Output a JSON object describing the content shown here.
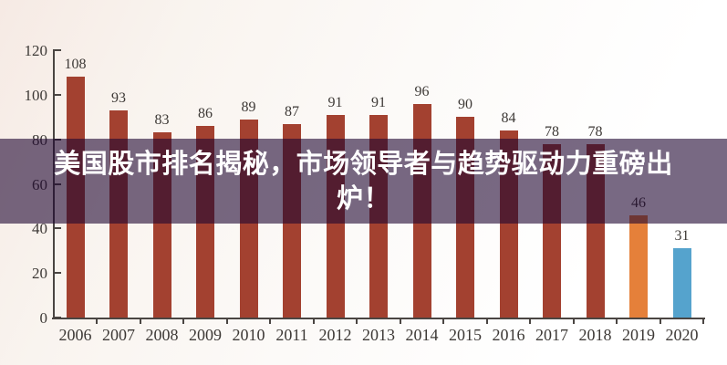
{
  "overlay": {
    "title_line1": "美国股市排名揭秘，市场领导者与趋势驱动力重磅出",
    "title_line2": "炉！",
    "band_color": "rgba(30,5,48,0.60)",
    "text_color": "#ffffff"
  },
  "chart_data": {
    "type": "bar",
    "categories": [
      "2006",
      "2007",
      "2008",
      "2009",
      "2010",
      "2011",
      "2012",
      "2013",
      "2014",
      "2015",
      "2016",
      "2017",
      "2018",
      "2019",
      "2020"
    ],
    "values": [
      108,
      93,
      83,
      86,
      89,
      87,
      91,
      91,
      96,
      90,
      84,
      78,
      78,
      46,
      31
    ],
    "bar_colors": [
      "#a34130",
      "#a34130",
      "#a34130",
      "#a34130",
      "#a34130",
      "#a34130",
      "#a34130",
      "#a34130",
      "#a34130",
      "#a34130",
      "#a34130",
      "#a34130",
      "#a34130",
      "#e5803a",
      "#55a3cd"
    ],
    "default_bar_color": "#a34130",
    "highlight_colors": {
      "2019": "#e5803a",
      "2020": "#55a3cd"
    },
    "title": "",
    "xlabel": "",
    "ylabel": "",
    "y_ticks": [
      0,
      20,
      40,
      60,
      80,
      100,
      120
    ],
    "ylim": [
      0,
      120
    ],
    "grid": "off",
    "legend": "none",
    "value_labels": "above bars",
    "axis_color": "#4a4542",
    "label_color": "#3d3936"
  }
}
